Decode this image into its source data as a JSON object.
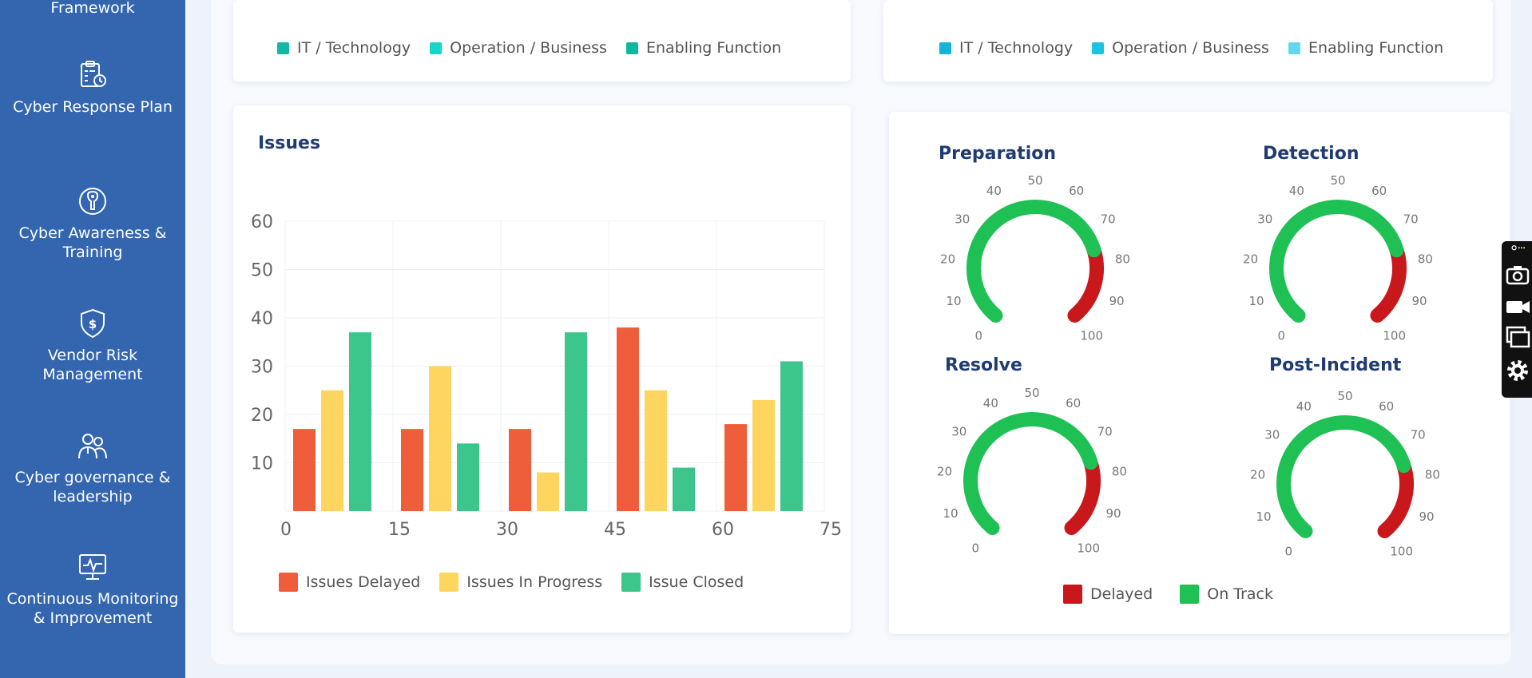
{
  "colors": {
    "sidebar_bg": "#3466b0",
    "delayed_bar": "#f05d3b",
    "in_progress_bar": "#fdd55f",
    "closed_bar": "#3cc68c",
    "gauge_green": "#1fc054",
    "gauge_red": "#c8181c",
    "title": "#1f3c72"
  },
  "sidebar": {
    "items": [
      {
        "label": "Framework",
        "icon": "framework-icon"
      },
      {
        "label": "Cyber Response Plan",
        "icon": "clipboard-clock-icon"
      },
      {
        "label": "Cyber Awareness & Training",
        "icon": "head-awareness-icon"
      },
      {
        "label": "Vendor Risk Management",
        "icon": "dollar-shield-icon"
      },
      {
        "label": "Cyber governance & leadership",
        "icon": "people-leadership-icon"
      },
      {
        "label": "Continuous Monitoring & Improvement",
        "icon": "monitor-pulse-icon"
      }
    ]
  },
  "top_left_legend": [
    {
      "label": "IT / Technology",
      "color": "#13b7a3"
    },
    {
      "label": "Operation / Business",
      "color": "#15d4c9"
    },
    {
      "label": "Enabling Function",
      "color": "#0fb7a0"
    }
  ],
  "top_right_legend": [
    {
      "label": "IT / Technology",
      "color": "#17b3d6"
    },
    {
      "label": "Operation / Business",
      "color": "#1ec2e0"
    },
    {
      "label": "Enabling Function",
      "color": "#62d8ee"
    }
  ],
  "issues": {
    "title": "Issues",
    "legend": [
      {
        "label": "Issues Delayed",
        "color": "#f05d3b"
      },
      {
        "label": "Issues In Progress",
        "color": "#fdd55f"
      },
      {
        "label": "Issue Closed",
        "color": "#3cc68c"
      }
    ]
  },
  "chart_data": {
    "type": "bar",
    "title": "Issues",
    "y_ticks": [
      "60",
      "50",
      "40",
      "30",
      "20",
      "10"
    ],
    "x_ticks": [
      "0",
      "15",
      "30",
      "45",
      "60",
      "75"
    ],
    "ylim": [
      0,
      60
    ],
    "groups": 5,
    "series": [
      {
        "name": "Issues Delayed",
        "values": [
          17,
          17,
          17,
          38,
          18
        ]
      },
      {
        "name": "Issues In Progress",
        "values": [
          25,
          30,
          8,
          25,
          23
        ]
      },
      {
        "name": "Issue Closed",
        "values": [
          37,
          14,
          37,
          9,
          31
        ]
      }
    ]
  },
  "gauges": {
    "tick_labels": [
      "0",
      "10",
      "20",
      "30",
      "40",
      "50",
      "60",
      "70",
      "80",
      "90",
      "100"
    ],
    "on_track_until": 76,
    "items": [
      {
        "title": "Preparation"
      },
      {
        "title": "Detection"
      },
      {
        "title": "Resolve"
      },
      {
        "title": "Post-Incident"
      }
    ],
    "legend": [
      {
        "label": "Delayed",
        "color": "#c8181c"
      },
      {
        "label": "On Track",
        "color": "#1fc054"
      }
    ]
  },
  "float_tools": {
    "items": [
      "link-more-icon",
      "camera-icon",
      "video-icon",
      "windows-icon",
      "gear-icon"
    ]
  }
}
